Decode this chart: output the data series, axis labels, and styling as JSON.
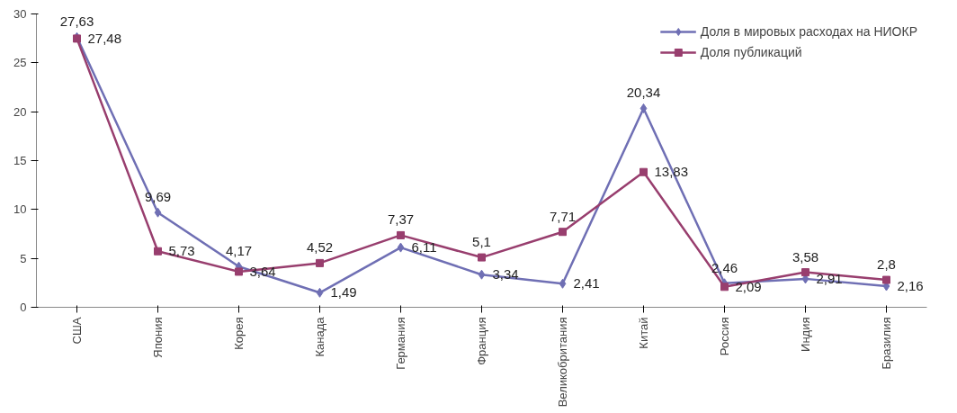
{
  "chart_data": {
    "type": "line",
    "categories": [
      "США",
      "Япония",
      "Корея",
      "Канада",
      "Германия",
      "Франция",
      "Великобритания",
      "Китай",
      "Россия",
      "Индия",
      "Бразилия"
    ],
    "series": [
      {
        "name": "Доля в мировых расходах на НИОКР",
        "color": "#6f6fb4",
        "marker": "diamond",
        "values": [
          27.63,
          9.69,
          4.17,
          1.49,
          6.11,
          3.34,
          2.41,
          20.34,
          2.46,
          2.91,
          2.16
        ],
        "value_labels": [
          "27,63",
          "9,69",
          "4,17",
          "1,49",
          "6,11",
          "3,34",
          "2,41",
          "20,34",
          "2,46",
          "2,91",
          "2,16"
        ]
      },
      {
        "name": "Доля публикаций",
        "color": "#983e6e",
        "marker": "square",
        "values": [
          27.48,
          5.73,
          3.64,
          4.52,
          7.37,
          5.1,
          7.71,
          13.83,
          2.09,
          3.58,
          2.8
        ],
        "value_labels": [
          "27,48",
          "5,73",
          "3,64",
          "4,52",
          "7,37",
          "5,1",
          "7,71",
          "13,83",
          "2,09",
          "3,58",
          "2,8"
        ]
      }
    ],
    "ylim": [
      0,
      30
    ],
    "yticks": [
      0,
      5,
      10,
      15,
      20,
      25,
      30
    ],
    "grid": false,
    "legend": "top right",
    "line_style": "solid",
    "data_labels": true
  }
}
